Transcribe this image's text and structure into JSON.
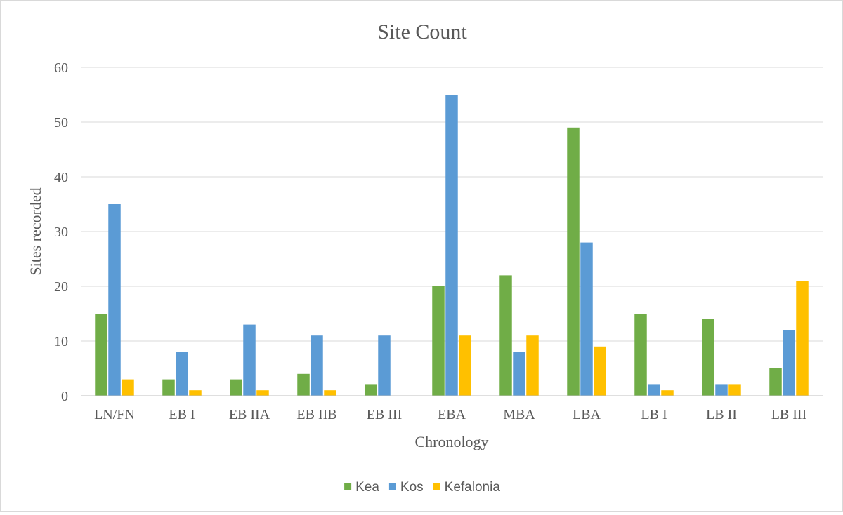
{
  "chart_data": {
    "type": "bar",
    "title": "Site Count",
    "xlabel": "Chronology",
    "ylabel": "Sites recorded",
    "categories": [
      "LN/FN",
      "EB I",
      "EB IIA",
      "EB IIB",
      "EB III",
      "EBA",
      "MBA",
      "LBA",
      "LB I",
      "LB II",
      "LB III"
    ],
    "series": [
      {
        "name": "Kea",
        "color": "#70ad47",
        "values": [
          15,
          3,
          3,
          4,
          2,
          20,
          22,
          49,
          15,
          14,
          5
        ]
      },
      {
        "name": "Kos",
        "color": "#5b9bd5",
        "values": [
          35,
          8,
          13,
          11,
          11,
          55,
          8,
          28,
          2,
          2,
          12
        ]
      },
      {
        "name": "Kefalonia",
        "color": "#ffc000",
        "values": [
          3,
          1,
          1,
          1,
          0,
          11,
          11,
          9,
          1,
          2,
          21
        ]
      }
    ],
    "ylim": [
      0,
      60
    ],
    "yticks": [
      0,
      10,
      20,
      30,
      40,
      50,
      60
    ],
    "grid": true,
    "legend": "bottom"
  }
}
